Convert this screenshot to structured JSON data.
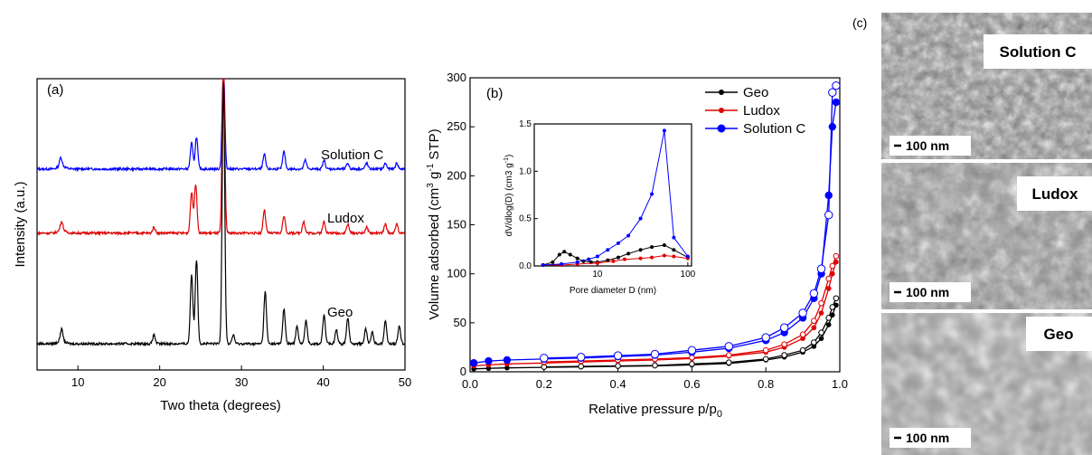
{
  "chart_data": [
    {
      "panel": "(a)",
      "type": "line",
      "xlabel": "Two theta (degrees)",
      "ylabel": "Intensity (a.u.)",
      "xlim": [
        5,
        50
      ],
      "xticks": [
        10,
        20,
        30,
        40,
        50
      ],
      "series": [
        {
          "name": "Solution C",
          "color": "#0000ff",
          "baseline": 0.69,
          "peaks": [
            [
              7.9,
              0.03
            ],
            [
              23.9,
              0.09
            ],
            [
              24.5,
              0.11
            ],
            [
              27.8,
              0.36
            ],
            [
              32.8,
              0.05
            ],
            [
              35.2,
              0.06
            ],
            [
              37.8,
              0.03
            ],
            [
              40.1,
              0.03
            ],
            [
              43.0,
              0.02
            ],
            [
              45.3,
              0.02
            ],
            [
              47.6,
              0.02
            ],
            [
              49.0,
              0.02
            ]
          ]
        },
        {
          "name": "Ludox",
          "color": "#e00000",
          "baseline": 0.47,
          "peaks": [
            [
              8.0,
              0.03
            ],
            [
              19.3,
              0.02
            ],
            [
              23.9,
              0.14
            ],
            [
              24.4,
              0.17
            ],
            [
              27.8,
              0.6
            ],
            [
              32.8,
              0.08
            ],
            [
              35.2,
              0.06
            ],
            [
              37.6,
              0.04
            ],
            [
              40.1,
              0.04
            ],
            [
              43.0,
              0.03
            ],
            [
              45.3,
              0.02
            ],
            [
              47.6,
              0.03
            ],
            [
              49.0,
              0.03
            ]
          ]
        },
        {
          "name": "Geo",
          "color": "#000000",
          "baseline": 0.09,
          "peaks": [
            [
              8.0,
              0.04
            ],
            [
              19.3,
              0.03
            ],
            [
              23.9,
              0.24
            ],
            [
              24.5,
              0.29
            ],
            [
              27.8,
              0.9
            ],
            [
              29.0,
              0.03
            ],
            [
              32.9,
              0.18
            ],
            [
              35.2,
              0.12
            ],
            [
              36.8,
              0.06
            ],
            [
              37.9,
              0.08
            ],
            [
              40.1,
              0.1
            ],
            [
              41.6,
              0.05
            ],
            [
              43.0,
              0.09
            ],
            [
              45.2,
              0.05
            ],
            [
              46.0,
              0.04
            ],
            [
              47.6,
              0.08
            ],
            [
              49.3,
              0.06
            ]
          ]
        }
      ]
    },
    {
      "panel": "(b)",
      "type": "line",
      "xlabel": "Relative pressure p/p0",
      "ylabel": "Volume adsorbed (cm3 g-1 STP)",
      "xlim": [
        0.0,
        1.0
      ],
      "ylim": [
        0,
        300
      ],
      "xticks": [
        0.0,
        0.2,
        0.4,
        0.6,
        0.8,
        1.0
      ],
      "yticks": [
        0,
        50,
        100,
        150,
        200,
        250,
        300
      ],
      "legend": "top-right",
      "series": [
        {
          "name": "Geo",
          "color": "#000000",
          "adsorption": [
            [
              0.01,
              3
            ],
            [
              0.05,
              3.5
            ],
            [
              0.1,
              4
            ],
            [
              0.2,
              4.5
            ],
            [
              0.3,
              5
            ],
            [
              0.4,
              5.5
            ],
            [
              0.5,
              6
            ],
            [
              0.6,
              7
            ],
            [
              0.7,
              8.5
            ],
            [
              0.8,
              12
            ],
            [
              0.85,
              15
            ],
            [
              0.9,
              20
            ],
            [
              0.93,
              26
            ],
            [
              0.95,
              34
            ],
            [
              0.97,
              48
            ],
            [
              0.98,
              58
            ],
            [
              0.99,
              68
            ]
          ],
          "desorption": [
            [
              0.99,
              75
            ],
            [
              0.98,
              66
            ],
            [
              0.97,
              55
            ],
            [
              0.95,
              40
            ],
            [
              0.93,
              30
            ],
            [
              0.9,
              22
            ],
            [
              0.85,
              17
            ],
            [
              0.8,
              13
            ],
            [
              0.7,
              9.5
            ],
            [
              0.6,
              8
            ],
            [
              0.5,
              6.5
            ],
            [
              0.4,
              6
            ],
            [
              0.3,
              5.5
            ],
            [
              0.2,
              5
            ]
          ]
        },
        {
          "name": "Ludox",
          "color": "#e00000",
          "adsorption": [
            [
              0.01,
              6
            ],
            [
              0.05,
              7
            ],
            [
              0.1,
              8
            ],
            [
              0.2,
              9
            ],
            [
              0.3,
              10
            ],
            [
              0.4,
              11
            ],
            [
              0.5,
              12
            ],
            [
              0.6,
              13.5
            ],
            [
              0.7,
              16
            ],
            [
              0.8,
              20
            ],
            [
              0.85,
              25
            ],
            [
              0.9,
              34
            ],
            [
              0.93,
              45
            ],
            [
              0.95,
              60
            ],
            [
              0.97,
              85
            ],
            [
              0.98,
              100
            ],
            [
              0.99,
              112
            ]
          ],
          "desorption": [
            [
              0.99,
              118
            ],
            [
              0.98,
              108
            ],
            [
              0.97,
              95
            ],
            [
              0.95,
              70
            ],
            [
              0.93,
              52
            ],
            [
              0.9,
              38
            ],
            [
              0.85,
              28
            ],
            [
              0.8,
              22
            ],
            [
              0.7,
              17
            ],
            [
              0.6,
              14.5
            ],
            [
              0.5,
              13
            ],
            [
              0.4,
              12
            ],
            [
              0.3,
              11
            ],
            [
              0.2,
              10
            ]
          ]
        },
        {
          "name": "Solution C",
          "color": "#0000ff",
          "adsorption": [
            [
              0.01,
              9
            ],
            [
              0.05,
              11
            ],
            [
              0.1,
              12
            ],
            [
              0.2,
              13
            ],
            [
              0.3,
              14
            ],
            [
              0.4,
              15.5
            ],
            [
              0.5,
              17
            ],
            [
              0.6,
              20
            ],
            [
              0.7,
              24
            ],
            [
              0.8,
              32
            ],
            [
              0.85,
              40
            ],
            [
              0.9,
              55
            ],
            [
              0.93,
              75
            ],
            [
              0.95,
              100
            ],
            [
              0.97,
              180
            ],
            [
              0.98,
              250
            ],
            [
              0.99,
              275
            ]
          ],
          "desorption": [
            [
              0.99,
              292
            ],
            [
              0.98,
              285
            ],
            [
              0.97,
              160
            ],
            [
              0.95,
              105
            ],
            [
              0.93,
              80
            ],
            [
              0.9,
              60
            ],
            [
              0.85,
              45
            ],
            [
              0.8,
              35
            ],
            [
              0.7,
              26
            ],
            [
              0.6,
              22
            ],
            [
              0.5,
              18
            ],
            [
              0.4,
              16.5
            ],
            [
              0.3,
              15
            ],
            [
              0.2,
              14
            ]
          ]
        }
      ]
    },
    {
      "panel": "(b) inset",
      "type": "line",
      "xlabel": "Pore diameter D (nm)",
      "ylabel": "dV/dlog(D) (cm3 g-1)",
      "xscale": "log",
      "xlim": [
        2,
        110
      ],
      "ylim": [
        0,
        1.5
      ],
      "xticks": [
        10,
        100
      ],
      "yticks": [
        0.0,
        0.5,
        1.0,
        1.5
      ],
      "series": [
        {
          "name": "Geo",
          "color": "#000000",
          "points": [
            [
              2.5,
              0.01
            ],
            [
              3.2,
              0.04
            ],
            [
              3.8,
              0.12
            ],
            [
              4.3,
              0.15
            ],
            [
              5,
              0.12
            ],
            [
              6,
              0.08
            ],
            [
              7,
              0.05
            ],
            [
              8.5,
              0.04
            ],
            [
              10,
              0.04
            ],
            [
              13,
              0.06
            ],
            [
              17,
              0.09
            ],
            [
              22,
              0.13
            ],
            [
              30,
              0.17
            ],
            [
              40,
              0.2
            ],
            [
              55,
              0.22
            ],
            [
              70,
              0.17
            ],
            [
              100,
              0.09
            ]
          ]
        },
        {
          "name": "Ludox",
          "color": "#e00000",
          "points": [
            [
              2.5,
              0.01
            ],
            [
              4,
              0.01
            ],
            [
              6,
              0.02
            ],
            [
              10,
              0.03
            ],
            [
              15,
              0.05
            ],
            [
              20,
              0.07
            ],
            [
              30,
              0.08
            ],
            [
              40,
              0.09
            ],
            [
              55,
              0.11
            ],
            [
              70,
              0.1
            ],
            [
              100,
              0.08
            ]
          ]
        },
        {
          "name": "Solution C",
          "color": "#0000ff",
          "points": [
            [
              2.5,
              0.01
            ],
            [
              4,
              0.02
            ],
            [
              6,
              0.04
            ],
            [
              8,
              0.07
            ],
            [
              10,
              0.1
            ],
            [
              13,
              0.17
            ],
            [
              17,
              0.24
            ],
            [
              22,
              0.32
            ],
            [
              30,
              0.5
            ],
            [
              40,
              0.76
            ],
            [
              55,
              1.43
            ],
            [
              70,
              0.3
            ],
            [
              100,
              0.1
            ]
          ]
        }
      ]
    }
  ],
  "panel_c": {
    "label": "(c)",
    "images": [
      {
        "label": "Solution C",
        "scale_bar": "100 nm"
      },
      {
        "label": "Ludox",
        "scale_bar": "100 nm"
      },
      {
        "label": "Geo",
        "scale_bar": "100 nm"
      }
    ]
  }
}
